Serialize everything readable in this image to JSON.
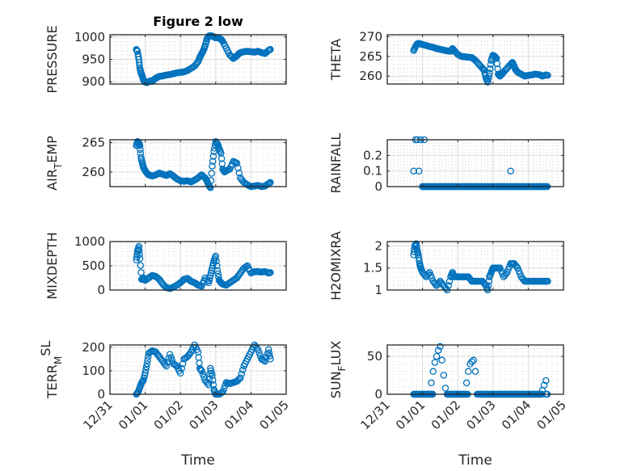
{
  "figure_title": "Figure 2 low",
  "colors": {
    "marker": "#0072BD",
    "axis": "#262626",
    "grid": "#dcdcdc",
    "minor_grid": "#c8c8c8"
  },
  "chart_data": [
    {
      "type": "scatter",
      "name": "pressure",
      "title": "Figure 2 low",
      "ylabel": "PRESSURE",
      "ylabel_parts": [
        "PRESSURE"
      ],
      "xlabel": "",
      "ylim": [
        895,
        1005
      ],
      "yticks": [
        900,
        950,
        1000
      ],
      "xticks": [
        "12/31",
        "01/01",
        "01/02",
        "01/03",
        "01/04",
        "01/05"
      ],
      "xlim": [
        0,
        5
      ],
      "marker": "circle",
      "grid": true,
      "x": [
        0.75,
        0.78,
        0.82,
        0.85,
        0.88,
        0.92,
        0.95,
        0.98,
        1.02,
        1.05,
        1.1,
        1.15,
        1.2,
        1.25,
        1.3,
        1.35,
        1.4,
        1.5,
        1.6,
        1.7,
        1.8,
        1.9,
        2.0,
        2.1,
        2.2,
        2.3,
        2.4,
        2.5,
        2.55,
        2.6,
        2.65,
        2.7,
        2.75,
        2.8,
        2.85,
        2.9,
        2.95,
        3.0,
        3.05,
        3.1,
        3.15,
        3.2,
        3.3,
        3.4,
        3.5,
        3.55,
        3.6,
        3.65,
        3.7,
        3.75,
        3.8,
        3.9,
        4.0,
        4.1,
        4.2,
        4.3,
        4.4,
        4.5,
        4.55
      ],
      "y": [
        972,
        968,
        950,
        930,
        920,
        912,
        905,
        900,
        899,
        898,
        900,
        902,
        901,
        905,
        908,
        910,
        912,
        913,
        915,
        916,
        918,
        920,
        921,
        922,
        925,
        930,
        935,
        945,
        955,
        962,
        970,
        980,
        995,
        1002,
        1003,
        1002,
        1000,
        998,
        999,
        997,
        995,
        990,
        975,
        960,
        952,
        955,
        958,
        962,
        965,
        966,
        967,
        968,
        967,
        966,
        968,
        965,
        963,
        970,
        972
      ]
    },
    {
      "type": "scatter",
      "name": "theta",
      "ylabel": "THETA",
      "ylabel_parts": [
        "THETA"
      ],
      "xlabel": "",
      "ylim": [
        258,
        270.5
      ],
      "yticks": [
        260,
        265,
        270
      ],
      "xticks": [
        "12/31",
        "01/01",
        "01/02",
        "01/03",
        "01/04",
        "01/05"
      ],
      "xlim": [
        0,
        5
      ],
      "marker": "circle",
      "grid": true,
      "x": [
        0.75,
        0.8,
        0.85,
        0.9,
        1.0,
        1.1,
        1.2,
        1.3,
        1.4,
        1.5,
        1.6,
        1.7,
        1.8,
        1.85,
        1.9,
        2.0,
        2.1,
        2.2,
        2.3,
        2.4,
        2.5,
        2.6,
        2.7,
        2.75,
        2.8,
        2.85,
        2.9,
        2.95,
        3.0,
        3.05,
        3.1,
        3.15,
        3.2,
        3.25,
        3.3,
        3.4,
        3.5,
        3.55,
        3.6,
        3.65,
        3.7,
        3.8,
        3.9,
        4.0,
        4.1,
        4.2,
        4.3,
        4.4,
        4.5,
        4.55
      ],
      "y": [
        266.5,
        267.5,
        268.2,
        268.3,
        268.0,
        267.8,
        267.5,
        267.3,
        267.0,
        266.8,
        266.6,
        266.4,
        266.3,
        267.0,
        266.5,
        265.5,
        265.0,
        264.9,
        264.8,
        264.7,
        264.0,
        263.0,
        262.0,
        261.5,
        259.5,
        258.5,
        260.8,
        264.0,
        265.3,
        265.0,
        264.5,
        260.5,
        260.0,
        260.5,
        261.0,
        262.0,
        263.0,
        263.5,
        262.5,
        261.5,
        261.0,
        260.5,
        260.0,
        260.2,
        260.3,
        260.5,
        260.4,
        260.0,
        260.3,
        260.2
      ]
    },
    {
      "type": "scatter",
      "name": "air_temp",
      "ylabel": "AIR_TEMP",
      "ylabel_parts": [
        "AIR",
        "T",
        "EMP"
      ],
      "xlabel": "",
      "ylim": [
        257.5,
        265.5
      ],
      "yticks": [
        260,
        265
      ],
      "xticks": [
        "12/31",
        "01/01",
        "01/02",
        "01/03",
        "01/04",
        "01/05"
      ],
      "xlim": [
        0,
        5
      ],
      "marker": "circle",
      "grid": true,
      "x": [
        0.75,
        0.78,
        0.82,
        0.85,
        0.88,
        0.92,
        0.95,
        1.0,
        1.05,
        1.1,
        1.2,
        1.3,
        1.4,
        1.5,
        1.6,
        1.7,
        1.8,
        1.9,
        2.0,
        2.1,
        2.2,
        2.3,
        2.4,
        2.5,
        2.6,
        2.7,
        2.75,
        2.8,
        2.85,
        2.9,
        2.95,
        3.0,
        3.05,
        3.1,
        3.15,
        3.2,
        3.25,
        3.3,
        3.4,
        3.5,
        3.6,
        3.7,
        3.8,
        3.9,
        4.0,
        4.1,
        4.2,
        4.3,
        4.4,
        4.5,
        4.55
      ],
      "y": [
        264.5,
        265.2,
        265.0,
        264.5,
        262.5,
        261.5,
        260.8,
        260.2,
        259.8,
        259.5,
        259.3,
        259.5,
        259.8,
        259.6,
        259.4,
        259.7,
        259.3,
        258.8,
        258.5,
        258.4,
        258.5,
        258.3,
        258.6,
        259.0,
        259.5,
        259.0,
        258.5,
        257.8,
        257.3,
        261.0,
        263.5,
        265.2,
        264.8,
        264.0,
        263.2,
        260.5,
        260.0,
        260.2,
        260.5,
        261.8,
        261.5,
        259.0,
        258.2,
        257.8,
        257.5,
        257.6,
        257.7,
        257.5,
        257.6,
        258.0,
        258.2
      ]
    },
    {
      "type": "scatter",
      "name": "rainfall",
      "ylabel": "RAINFALL",
      "ylabel_parts": [
        "RAINFALL"
      ],
      "xlabel": "",
      "ylim": [
        0,
        0.3
      ],
      "yticks": [
        0,
        0.1,
        0.2
      ],
      "xticks": [
        "12/31",
        "01/01",
        "01/02",
        "01/03",
        "01/04",
        "01/05"
      ],
      "xlim": [
        0,
        5
      ],
      "marker": "circle",
      "grid": true,
      "x": [
        0.75,
        0.8,
        0.85,
        0.9,
        0.95,
        1.0,
        1.05,
        3.5
      ],
      "y": [
        0.1,
        0.3,
        0.3,
        0.1,
        0.3,
        0.0,
        0.3,
        0.1
      ],
      "zero_run": [
        1.0,
        4.55
      ]
    },
    {
      "type": "scatter",
      "name": "mixdepth",
      "ylabel": "MIXDEPTH",
      "ylabel_parts": [
        "MIXDEPTH"
      ],
      "xlabel": "",
      "ylim": [
        0,
        1000
      ],
      "yticks": [
        0,
        500,
        1000
      ],
      "xticks": [
        "12/31",
        "01/01",
        "01/02",
        "01/03",
        "01/04",
        "01/05"
      ],
      "xlim": [
        0,
        5
      ],
      "marker": "circle",
      "grid": true,
      "x": [
        0.75,
        0.78,
        0.82,
        0.85,
        0.9,
        0.95,
        1.0,
        1.1,
        1.2,
        1.3,
        1.4,
        1.5,
        1.6,
        1.7,
        1.8,
        1.9,
        2.0,
        2.1,
        2.2,
        2.3,
        2.4,
        2.5,
        2.6,
        2.7,
        2.8,
        2.85,
        2.9,
        2.95,
        3.0,
        3.05,
        3.1,
        3.15,
        3.2,
        3.3,
        3.4,
        3.5,
        3.6,
        3.7,
        3.8,
        3.9,
        4.0,
        4.1,
        4.2,
        4.3,
        4.4,
        4.5,
        4.55
      ],
      "y": [
        620,
        800,
        900,
        650,
        220,
        250,
        200,
        250,
        300,
        280,
        220,
        120,
        50,
        30,
        60,
        100,
        150,
        220,
        240,
        180,
        150,
        100,
        80,
        250,
        150,
        300,
        450,
        600,
        700,
        400,
        200,
        150,
        120,
        100,
        150,
        200,
        250,
        350,
        450,
        500,
        350,
        380,
        380,
        370,
        380,
        350,
        360
      ]
    },
    {
      "type": "scatter",
      "name": "h2omixra",
      "ylabel": "H2OMIXRA",
      "ylabel_parts": [
        "H2OMIXRA"
      ],
      "xlabel": "",
      "ylim": [
        1,
        2.1
      ],
      "yticks": [
        1,
        1.5,
        2
      ],
      "xticks": [
        "12/31",
        "01/01",
        "01/02",
        "01/03",
        "01/04",
        "01/05"
      ],
      "xlim": [
        0,
        5
      ],
      "marker": "circle",
      "grid": true,
      "x": [
        0.75,
        0.78,
        0.82,
        0.85,
        0.88,
        0.92,
        0.95,
        1.0,
        1.1,
        1.2,
        1.3,
        1.4,
        1.5,
        1.6,
        1.7,
        1.8,
        1.85,
        1.9,
        2.0,
        2.1,
        2.2,
        2.3,
        2.4,
        2.5,
        2.6,
        2.7,
        2.8,
        2.85,
        2.9,
        2.95,
        3.0,
        3.1,
        3.2,
        3.3,
        3.4,
        3.5,
        3.6,
        3.7,
        3.8,
        3.9,
        4.0,
        4.1,
        4.2,
        4.3,
        4.4,
        4.5,
        4.55
      ],
      "y": [
        1.8,
        2.0,
        2.05,
        1.9,
        1.8,
        1.6,
        1.5,
        1.4,
        1.3,
        1.4,
        1.2,
        1.1,
        1.2,
        1.1,
        1.0,
        1.3,
        1.4,
        1.3,
        1.3,
        1.3,
        1.3,
        1.3,
        1.2,
        1.2,
        1.2,
        1.2,
        1.1,
        1.0,
        1.3,
        1.4,
        1.5,
        1.5,
        1.5,
        1.3,
        1.4,
        1.6,
        1.6,
        1.5,
        1.3,
        1.2,
        1.2,
        1.2,
        1.2,
        1.2,
        1.2,
        1.2,
        1.2
      ]
    },
    {
      "type": "scatter",
      "name": "terr_msl",
      "ylabel": "TERR_MSL",
      "ylabel_parts": [
        "TERR",
        "M",
        "SL"
      ],
      "xlabel": "Time",
      "ylim": [
        0,
        210
      ],
      "yticks": [
        0,
        100,
        200
      ],
      "xticks": [
        "12/31",
        "01/01",
        "01/02",
        "01/03",
        "01/04",
        "01/05"
      ],
      "xlim": [
        0,
        5
      ],
      "marker": "circle",
      "grid": true,
      "x": [
        0.75,
        0.8,
        0.85,
        0.9,
        0.95,
        1.0,
        1.05,
        1.1,
        1.2,
        1.3,
        1.4,
        1.5,
        1.6,
        1.7,
        1.8,
        1.9,
        2.0,
        2.1,
        2.2,
        2.3,
        2.4,
        2.5,
        2.55,
        2.6,
        2.7,
        2.8,
        2.85,
        2.9,
        2.95,
        3.0,
        3.05,
        3.1,
        3.2,
        3.3,
        3.4,
        3.5,
        3.6,
        3.7,
        3.8,
        3.9,
        4.0,
        4.1,
        4.2,
        4.3,
        4.4,
        4.5,
        4.55
      ],
      "y": [
        0,
        10,
        30,
        50,
        60,
        90,
        130,
        175,
        185,
        180,
        160,
        140,
        120,
        170,
        130,
        120,
        90,
        150,
        160,
        180,
        210,
        180,
        110,
        100,
        60,
        40,
        110,
        80,
        20,
        0,
        0,
        0,
        10,
        50,
        45,
        50,
        55,
        70,
        120,
        150,
        180,
        210,
        190,
        150,
        140,
        190,
        150
      ]
    },
    {
      "type": "scatter",
      "name": "sun_flux",
      "ylabel": "SUN_FLUX",
      "ylabel_parts": [
        "SUN",
        "F",
        "LUX"
      ],
      "xlabel": "Time",
      "ylim": [
        0,
        65
      ],
      "yticks": [
        0,
        50
      ],
      "xticks": [
        "12/31",
        "01/01",
        "01/02",
        "01/03",
        "01/04",
        "01/05"
      ],
      "xlim": [
        0,
        5
      ],
      "marker": "circle",
      "grid": true,
      "x": [
        1.25,
        1.3,
        1.35,
        1.4,
        1.45,
        1.5,
        1.55,
        1.6,
        1.65,
        2.25,
        2.3,
        2.35,
        2.4,
        2.45,
        2.5,
        4.4,
        4.45,
        4.5
      ],
      "y": [
        15,
        30,
        42,
        50,
        58,
        63,
        45,
        25,
        8,
        15,
        30,
        40,
        43,
        45,
        30,
        5,
        12,
        18
      ],
      "zero_runs": [
        [
          0.75,
          1.3
        ],
        [
          1.7,
          2.3
        ],
        [
          2.55,
          4.4
        ],
        [
          4.5,
          4.55
        ]
      ]
    }
  ]
}
